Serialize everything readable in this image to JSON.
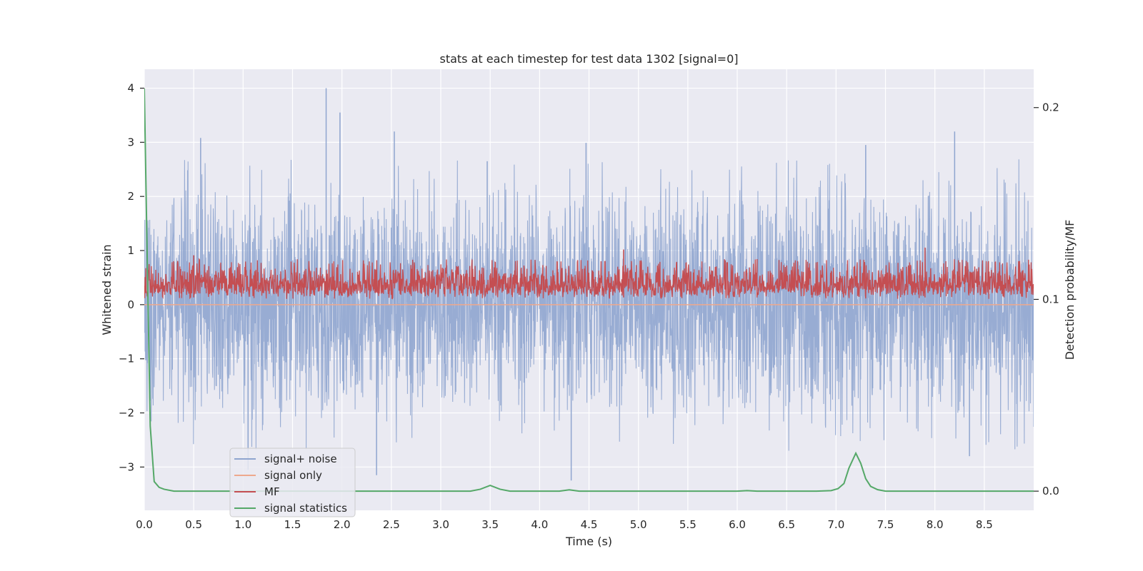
{
  "chart_data": {
    "type": "line",
    "title": "stats at each timestep for test data 1302 [signal=0]",
    "xlabel": "Time (s)",
    "ylabel": "Whitened strain",
    "ylabel_right": "Detection probability/MF",
    "xlim": [
      0,
      9.0
    ],
    "ylim": [
      -3.8,
      4.35
    ],
    "ylim_right": [
      -0.01,
      0.22
    ],
    "x_ticks": [
      "0.0",
      "0.5",
      "1.0",
      "1.5",
      "2.0",
      "2.5",
      "3.0",
      "3.5",
      "4.0",
      "4.5",
      "5.0",
      "5.5",
      "6.0",
      "6.5",
      "7.0",
      "7.5",
      "8.0",
      "8.5"
    ],
    "x_tick_values": [
      0,
      0.5,
      1.0,
      1.5,
      2.0,
      2.5,
      3.0,
      3.5,
      4.0,
      4.5,
      5.0,
      5.5,
      6.0,
      6.5,
      7.0,
      7.5,
      8.0,
      8.5
    ],
    "y_ticks": [
      "4",
      "3",
      "2",
      "1",
      "0",
      "−1",
      "−2",
      "−3"
    ],
    "y_tick_values": [
      4,
      3,
      2,
      1,
      0,
      -1,
      -2,
      -3
    ],
    "y_right_ticks": [
      "0.2",
      "0.1",
      "0.0"
    ],
    "y_right_tick_values": [
      0.2,
      0.1,
      0.0
    ],
    "legend": {
      "location": "lower-left",
      "entries": [
        {
          "label": "signal+ noise",
          "color": "#8fa5cf"
        },
        {
          "label": "signal only",
          "color": "#eea88d"
        },
        {
          "label": "MF",
          "color": "#c44e52"
        },
        {
          "label": "signal statistics",
          "color": "#55a868"
        }
      ]
    },
    "series": [
      {
        "name": "signal+ noise",
        "axis": "left",
        "color": "#8fa5cf",
        "description": "dense whitened strain noise, approx. range -3.2 to 4.0",
        "peaks": [
          {
            "x": 1.84,
            "y": 4.0
          },
          {
            "x": 1.98,
            "y": 3.55
          },
          {
            "x": 0.57,
            "y": 3.08
          },
          {
            "x": 2.53,
            "y": 3.2
          },
          {
            "x": 8.2,
            "y": 3.2
          },
          {
            "x": 7.3,
            "y": 2.95
          },
          {
            "x": 3.47,
            "y": 2.65
          },
          {
            "x": 4.47,
            "y": 2.99
          },
          {
            "x": 2.35,
            "y": -3.15
          },
          {
            "x": 4.32,
            "y": -3.25
          },
          {
            "x": 1.05,
            "y": -3.05
          },
          {
            "x": 8.35,
            "y": -2.8
          }
        ]
      },
      {
        "name": "signal only",
        "axis": "left",
        "color": "#eea88d",
        "x": [
          0,
          9.0
        ],
        "y": [
          0,
          0
        ]
      },
      {
        "name": "MF",
        "axis": "right",
        "color": "#c44e52",
        "description": "matched filter output, approx. 0.100 to 0.135",
        "peaks": [
          {
            "x": 0.5,
            "y": 0.123
          },
          {
            "x": 4.85,
            "y": 0.126
          },
          {
            "x": 7.9,
            "y": 0.127
          },
          {
            "x": 6.2,
            "y": 0.121
          }
        ]
      },
      {
        "name": "signal statistics",
        "axis": "right",
        "color": "#55a868",
        "x": [
          0.0,
          0.03,
          0.06,
          0.1,
          0.15,
          0.2,
          0.3,
          0.4,
          0.6,
          1.0,
          2.0,
          3.0,
          3.3,
          3.4,
          3.5,
          3.6,
          3.7,
          4.0,
          4.2,
          4.3,
          4.4,
          4.5,
          5.0,
          6.0,
          6.1,
          6.2,
          6.8,
          6.95,
          7.02,
          7.08,
          7.13,
          7.2,
          7.25,
          7.3,
          7.35,
          7.42,
          7.5,
          7.7,
          8.0,
          8.5,
          9.0
        ],
        "y": [
          0.21,
          0.12,
          0.034,
          0.005,
          0.002,
          0.001,
          0.0,
          0.0,
          0.0,
          0.0,
          0.0,
          0.0,
          0.0,
          0.001,
          0.003,
          0.001,
          0.0,
          0.0,
          0.0,
          0.0007,
          0.0,
          0.0,
          0.0,
          0.0,
          0.0003,
          0.0,
          0.0,
          0.0003,
          0.0013,
          0.004,
          0.012,
          0.0198,
          0.0145,
          0.0065,
          0.0025,
          0.0008,
          0.0,
          0.0,
          0.0,
          0.0,
          0.0
        ]
      }
    ]
  }
}
